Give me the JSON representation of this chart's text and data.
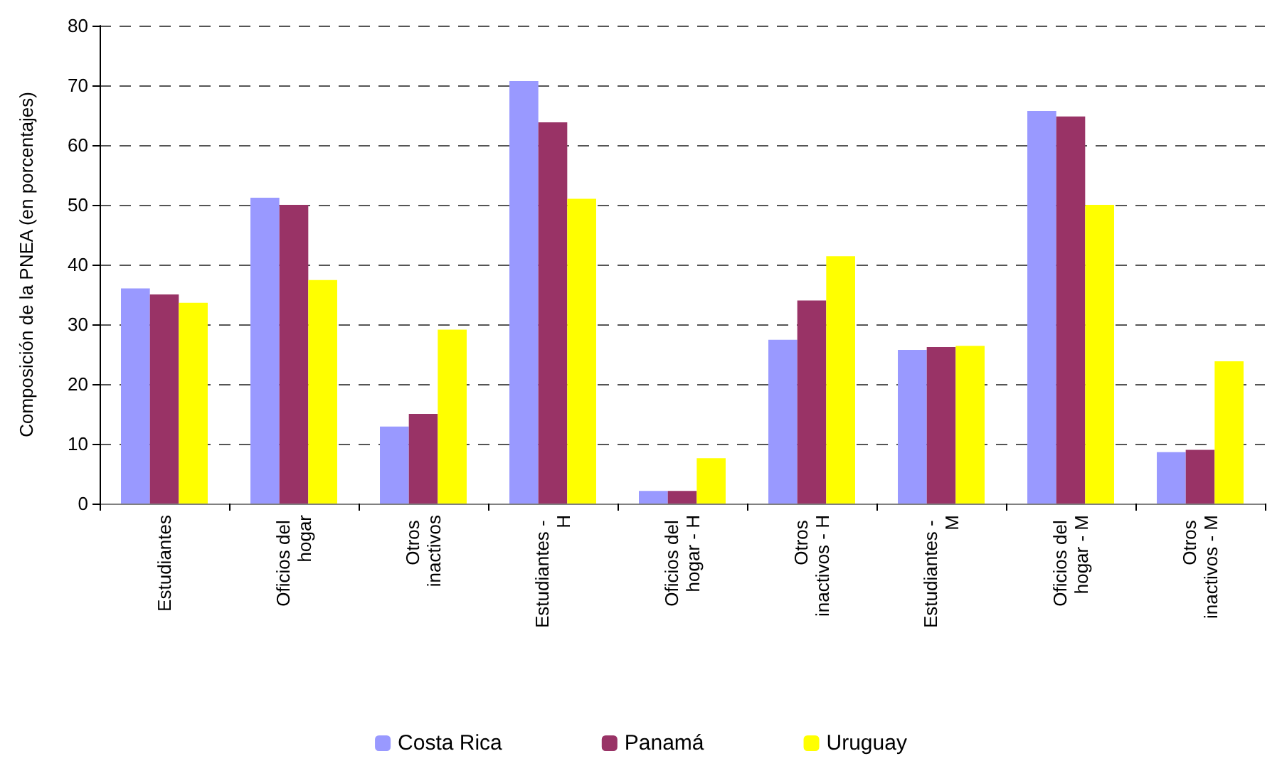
{
  "chart_data": {
    "type": "bar",
    "ylabel": "Composición de la PNEA (en porcentajes)",
    "categories": [
      "Estudiantes",
      "Oficios del hogar",
      "Otros inactivos",
      "Estudiantes - H",
      "Oficios del hogar - H",
      "Otros inactivos - H",
      "Estudiantes - M",
      "Oficios del hogar - M",
      "Otros inactivos - M"
    ],
    "series": [
      {
        "name": "Costa Rica",
        "color": "#9999ff",
        "values": [
          36,
          51.2,
          12.9,
          70.7,
          2.1,
          27.4,
          25.7,
          65.7,
          8.6
        ]
      },
      {
        "name": "Panamá",
        "color": "#993366",
        "values": [
          35,
          50,
          15,
          63.8,
          2.1,
          34,
          26.2,
          64.8,
          9
        ]
      },
      {
        "name": "Uruguay",
        "color": "#ffff00",
        "values": [
          33.6,
          37.4,
          29.1,
          51,
          7.6,
          41.4,
          26.4,
          50,
          23.8
        ]
      }
    ],
    "ylim": [
      0,
      80
    ],
    "yticks": [
      0,
      10,
      20,
      30,
      40,
      50,
      60,
      70,
      80
    ],
    "grid": "y",
    "legend": "bottom"
  }
}
